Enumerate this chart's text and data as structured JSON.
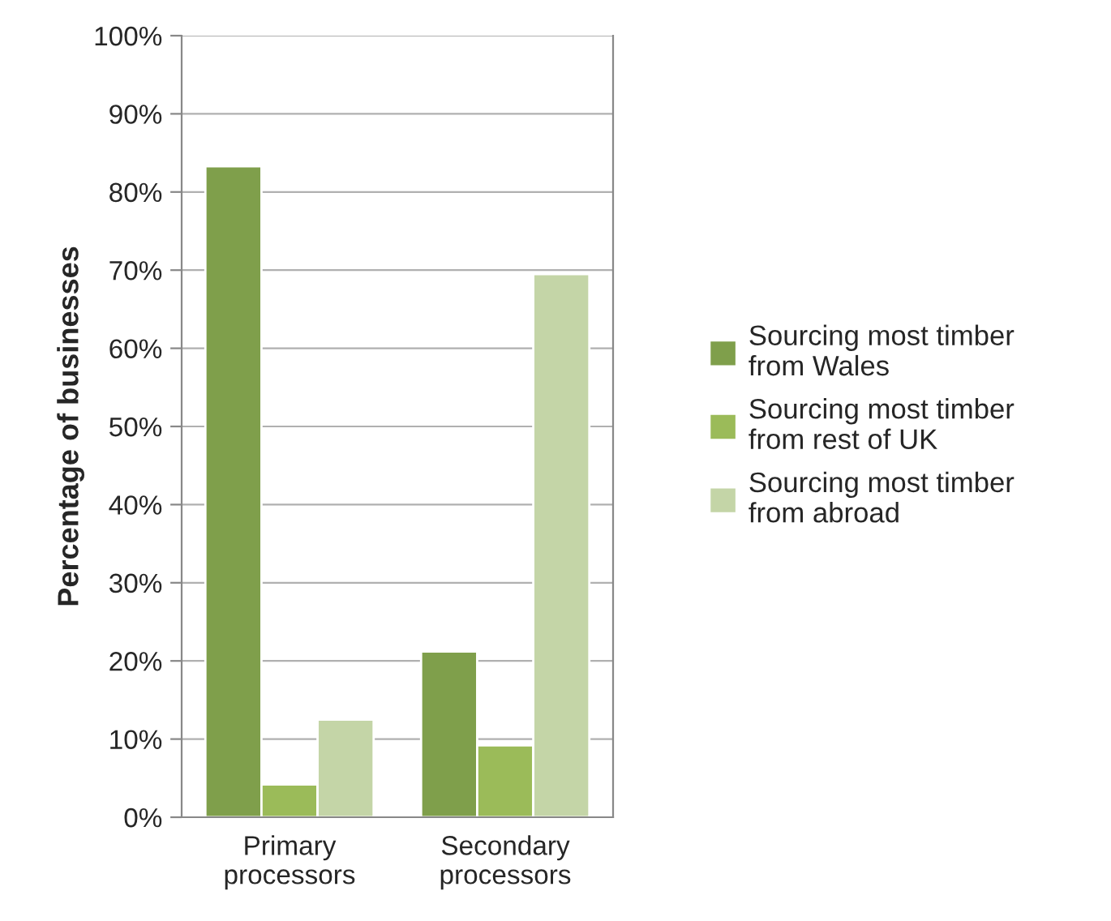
{
  "chart_data": {
    "type": "bar",
    "ylabel": "Percentage of businesses",
    "categories": [
      "Primary processors",
      "Secondary processors"
    ],
    "series": [
      {
        "name": "Sourcing most timber from Wales",
        "color": "#7f9f4b",
        "values": [
          83.3,
          21.2
        ]
      },
      {
        "name": "Sourcing most timber from rest of UK",
        "color": "#9bbb59",
        "values": [
          4.2,
          9.2
        ]
      },
      {
        "name": "Sourcing most timber from abroad",
        "color": "#c4d5a7",
        "values": [
          12.5,
          69.5
        ]
      }
    ],
    "ylim": [
      0,
      100
    ],
    "yticks": [
      {
        "value": 0,
        "label": "0%"
      },
      {
        "value": 10,
        "label": "10%"
      },
      {
        "value": 20,
        "label": "20%"
      },
      {
        "value": 30,
        "label": "30%"
      },
      {
        "value": 40,
        "label": "40%"
      },
      {
        "value": 50,
        "label": "50%"
      },
      {
        "value": 60,
        "label": "60%"
      },
      {
        "value": 70,
        "label": "70%"
      },
      {
        "value": 80,
        "label": "80%"
      },
      {
        "value": 90,
        "label": "90%"
      },
      {
        "value": 100,
        "label": "100%"
      }
    ],
    "grid": "y",
    "legend": "right"
  }
}
